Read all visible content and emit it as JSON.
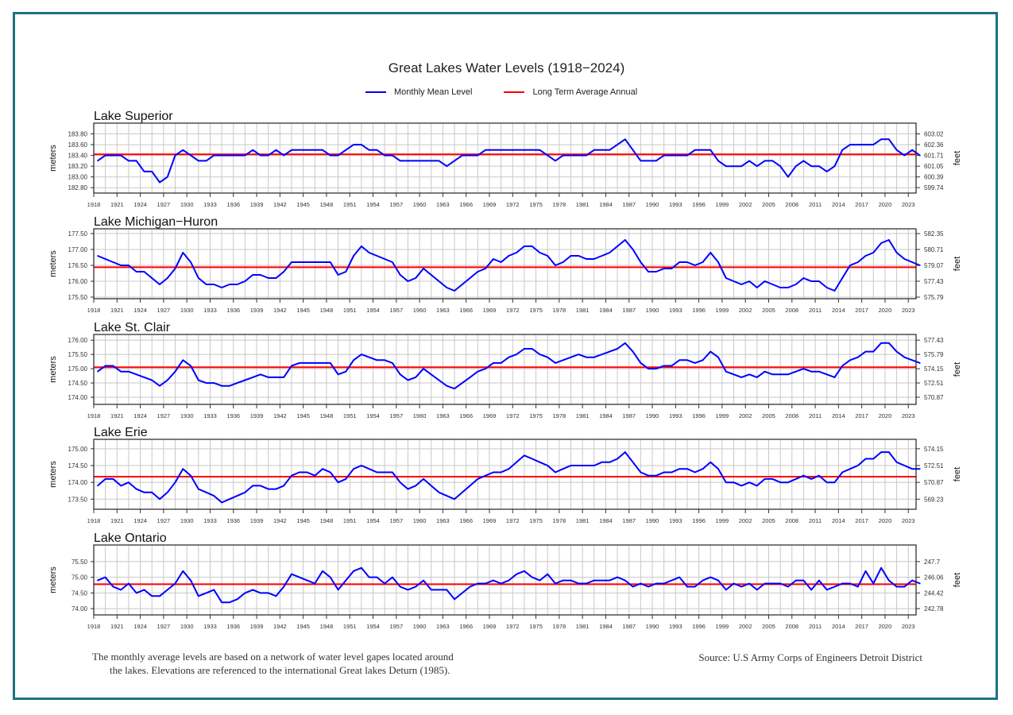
{
  "title": "Great Lakes Water Levels (1918−2024)",
  "legend": [
    {
      "label": "Monthly Mean Level",
      "color": "#0000ff"
    },
    {
      "label": "Long Term Average Annual",
      "color": "#ff0000"
    }
  ],
  "footnote": {
    "line1": "The monthly average levels are based on a network of water level gapes located around",
    "line2": "the lakes. Elevations are referenced to the international Great lakes Deturn (1985)."
  },
  "source": "Source: U.S Army Corps of Engineers Detroit District",
  "chart_data": [
    {
      "type": "line",
      "title": "Lake Superior",
      "ylabel": "meters",
      "y2label": "feet",
      "x_start": 1918,
      "x_end": 2024,
      "x_ticks": [
        "1918",
        "1921",
        "1924",
        "1927",
        "1930",
        "1933",
        "1936",
        "1939",
        "1942",
        "1945",
        "1948",
        "1951",
        "1954",
        "1957",
        "1960",
        "1963",
        "1966",
        "1969",
        "1972",
        "1975",
        "1978",
        "1981",
        "1984",
        "1987",
        "1990",
        "1993",
        "1996",
        "1999",
        "2002",
        "2005",
        "2008",
        "2011",
        "2014",
        "2017",
        "2020",
        "2023"
      ],
      "ylim": [
        182.7,
        184.0
      ],
      "y_ticks": [
        183.8,
        183.6,
        183.4,
        183.2,
        183.0,
        182.8
      ],
      "y_tick_labels": [
        "183.80",
        "183.60",
        "183.40",
        "183.20",
        "183.00",
        "182.80"
      ],
      "y2_tick_labels": [
        "603.02",
        "602.36",
        "601.71",
        "601.05",
        "600.39",
        "599.74"
      ],
      "long_term_average": 183.42,
      "grid": true,
      "series": [
        {
          "values": [
            183.3,
            183.4,
            183.4,
            183.4,
            183.3,
            183.3,
            183.1,
            183.1,
            182.9,
            183.0,
            183.4,
            183.5,
            183.4,
            183.3,
            183.3,
            183.4,
            183.4,
            183.4,
            183.4,
            183.4,
            183.5,
            183.4,
            183.4,
            183.5,
            183.4,
            183.5,
            183.5,
            183.5,
            183.5,
            183.5,
            183.4,
            183.4,
            183.5,
            183.6,
            183.6,
            183.5,
            183.5,
            183.4,
            183.4,
            183.3,
            183.3,
            183.3,
            183.3,
            183.3,
            183.3,
            183.2,
            183.3,
            183.4,
            183.4,
            183.4,
            183.5,
            183.5,
            183.5,
            183.5,
            183.5,
            183.5,
            183.5,
            183.5,
            183.4,
            183.3,
            183.4,
            183.4,
            183.4,
            183.4,
            183.5,
            183.5,
            183.5,
            183.6,
            183.7,
            183.5,
            183.3,
            183.3,
            183.3,
            183.4,
            183.4,
            183.4,
            183.4,
            183.5,
            183.5,
            183.5,
            183.3,
            183.2,
            183.2,
            183.2,
            183.3,
            183.2,
            183.3,
            183.3,
            183.2,
            183.0,
            183.2,
            183.3,
            183.2,
            183.2,
            183.1,
            183.2,
            183.5,
            183.6,
            183.6,
            183.6,
            183.6,
            183.7,
            183.7,
            183.5,
            183.4,
            183.5,
            183.4
          ]
        }
      ]
    },
    {
      "type": "line",
      "title": "Lake Michigan−Huron",
      "ylabel": "meters",
      "y2label": "feet",
      "x_start": 1918,
      "x_end": 2024,
      "x_ticks": [
        "1918",
        "1921",
        "1924",
        "1927",
        "1930",
        "1933",
        "1936",
        "1939",
        "1942",
        "1945",
        "1948",
        "1951",
        "1954",
        "1957",
        "1960",
        "1963",
        "1966",
        "1969",
        "1972",
        "1975",
        "1978",
        "1981",
        "1984",
        "1987",
        "1990",
        "1993",
        "1996",
        "1999",
        "2002",
        "2005",
        "2008",
        "2011",
        "2014",
        "2017",
        "2020",
        "2023"
      ],
      "ylim": [
        175.45,
        177.65
      ],
      "y_ticks": [
        177.5,
        177.0,
        176.5,
        176.0,
        175.5
      ],
      "y_tick_labels": [
        "177.50",
        "177.00",
        "176.50",
        "176.00",
        "175.50"
      ],
      "y2_tick_labels": [
        "582.35",
        "580.71",
        "579.07",
        "577.43",
        "575.79"
      ],
      "long_term_average": 176.44,
      "grid": true,
      "series": [
        {
          "values": [
            176.8,
            176.7,
            176.6,
            176.5,
            176.5,
            176.3,
            176.3,
            176.1,
            175.9,
            176.1,
            176.4,
            176.9,
            176.6,
            176.1,
            175.9,
            175.9,
            175.8,
            175.9,
            175.9,
            176.0,
            176.2,
            176.2,
            176.1,
            176.1,
            176.3,
            176.6,
            176.6,
            176.6,
            176.6,
            176.6,
            176.6,
            176.2,
            176.3,
            176.8,
            177.1,
            176.9,
            176.8,
            176.7,
            176.6,
            176.2,
            176.0,
            176.1,
            176.4,
            176.2,
            176.0,
            175.8,
            175.7,
            175.9,
            176.1,
            176.3,
            176.4,
            176.7,
            176.6,
            176.8,
            176.9,
            177.1,
            177.1,
            176.9,
            176.8,
            176.5,
            176.6,
            176.8,
            176.8,
            176.7,
            176.7,
            176.8,
            176.9,
            177.1,
            177.3,
            177.0,
            176.6,
            176.3,
            176.3,
            176.4,
            176.4,
            176.6,
            176.6,
            176.5,
            176.6,
            176.9,
            176.6,
            176.1,
            176.0,
            175.9,
            176.0,
            175.8,
            176.0,
            175.9,
            175.8,
            175.8,
            175.9,
            176.1,
            176.0,
            176.0,
            175.8,
            175.7,
            176.1,
            176.5,
            176.6,
            176.8,
            176.9,
            177.2,
            177.3,
            176.9,
            176.7,
            176.6,
            176.5
          ]
        }
      ]
    },
    {
      "type": "line",
      "title": "Lake St. Clair",
      "ylabel": "meters",
      "y2label": "feet",
      "x_start": 1918,
      "x_end": 2024,
      "x_ticks": [
        "1918",
        "1921",
        "1924",
        "1927",
        "1930",
        "1933",
        "1936",
        "1939",
        "1942",
        "1945",
        "1948",
        "1951",
        "1954",
        "1957",
        "1960",
        "1963",
        "1966",
        "1969",
        "1972",
        "1975",
        "1978",
        "1981",
        "1984",
        "1987",
        "1990",
        "1993",
        "1996",
        "1999",
        "2002",
        "2005",
        "2008",
        "2011",
        "2014",
        "2017",
        "2020",
        "2023"
      ],
      "ylim": [
        173.75,
        176.2
      ],
      "y_ticks": [
        176.0,
        175.5,
        175.0,
        174.5,
        174.0
      ],
      "y_tick_labels": [
        "176.00",
        "175.50",
        "175.00",
        "174.50",
        "174.00"
      ],
      "y2_tick_labels": [
        "577.43",
        "575.79",
        "574.15",
        "572.51",
        "570.87"
      ],
      "long_term_average": 175.05,
      "grid": true,
      "series": [
        {
          "values": [
            174.9,
            175.1,
            175.1,
            174.9,
            174.9,
            174.8,
            174.7,
            174.6,
            174.4,
            174.6,
            174.9,
            175.3,
            175.1,
            174.6,
            174.5,
            174.5,
            174.4,
            174.4,
            174.5,
            174.6,
            174.7,
            174.8,
            174.7,
            174.7,
            174.7,
            175.1,
            175.2,
            175.2,
            175.2,
            175.2,
            175.2,
            174.8,
            174.9,
            175.3,
            175.5,
            175.4,
            175.3,
            175.3,
            175.2,
            174.8,
            174.6,
            174.7,
            175.0,
            174.8,
            174.6,
            174.4,
            174.3,
            174.5,
            174.7,
            174.9,
            175.0,
            175.2,
            175.2,
            175.4,
            175.5,
            175.7,
            175.7,
            175.5,
            175.4,
            175.2,
            175.3,
            175.4,
            175.5,
            175.4,
            175.4,
            175.5,
            175.6,
            175.7,
            175.9,
            175.6,
            175.2,
            175.0,
            175.0,
            175.1,
            175.1,
            175.3,
            175.3,
            175.2,
            175.3,
            175.6,
            175.4,
            174.9,
            174.8,
            174.7,
            174.8,
            174.7,
            174.9,
            174.8,
            174.8,
            174.8,
            174.9,
            175.0,
            174.9,
            174.9,
            174.8,
            174.7,
            175.1,
            175.3,
            175.4,
            175.6,
            175.6,
            175.9,
            175.9,
            175.6,
            175.4,
            175.3,
            175.2
          ]
        }
      ]
    },
    {
      "type": "line",
      "title": "Lake Erie",
      "ylabel": "meters",
      "y2label": "feet",
      "x_start": 1918,
      "x_end": 2024,
      "x_ticks": [
        "1918",
        "1921",
        "1924",
        "1927",
        "1930",
        "1933",
        "1936",
        "1939",
        "1942",
        "1945",
        "1948",
        "1951",
        "1954",
        "1957",
        "1960",
        "1963",
        "1966",
        "1969",
        "1972",
        "1975",
        "1978",
        "1981",
        "1984",
        "1987",
        "1990",
        "1993",
        "1996",
        "1999",
        "2002",
        "2005",
        "2008",
        "2011",
        "2014",
        "2017",
        "2020",
        "2023"
      ],
      "ylim": [
        173.2,
        175.28
      ],
      "y_ticks": [
        175.0,
        174.5,
        174.0,
        173.5
      ],
      "y_tick_labels": [
        "175.00",
        "174.50",
        "174.00",
        "173.50"
      ],
      "y2_tick_labels": [
        "574.15",
        "572.51",
        "570.87",
        "569.23"
      ],
      "long_term_average": 174.17,
      "grid": true,
      "series": [
        {
          "values": [
            173.9,
            174.1,
            174.1,
            173.9,
            174.0,
            173.8,
            173.7,
            173.7,
            173.5,
            173.7,
            174.0,
            174.4,
            174.2,
            173.8,
            173.7,
            173.6,
            173.4,
            173.5,
            173.6,
            173.7,
            173.9,
            173.9,
            173.8,
            173.8,
            173.9,
            174.2,
            174.3,
            174.3,
            174.2,
            174.4,
            174.3,
            174.0,
            174.1,
            174.4,
            174.5,
            174.4,
            174.3,
            174.3,
            174.3,
            174.0,
            173.8,
            173.9,
            174.1,
            173.9,
            173.7,
            173.6,
            173.5,
            173.7,
            173.9,
            174.1,
            174.2,
            174.3,
            174.3,
            174.4,
            174.6,
            174.8,
            174.7,
            174.6,
            174.5,
            174.3,
            174.4,
            174.5,
            174.5,
            174.5,
            174.5,
            174.6,
            174.6,
            174.7,
            174.9,
            174.6,
            174.3,
            174.2,
            174.2,
            174.3,
            174.3,
            174.4,
            174.4,
            174.3,
            174.4,
            174.6,
            174.4,
            174.0,
            174.0,
            173.9,
            174.0,
            173.9,
            174.1,
            174.1,
            174.0,
            174.0,
            174.1,
            174.2,
            174.1,
            174.2,
            174.0,
            174.0,
            174.3,
            174.4,
            174.5,
            174.7,
            174.7,
            174.9,
            174.9,
            174.6,
            174.5,
            174.4,
            174.4
          ]
        }
      ]
    },
    {
      "type": "line",
      "title": "Lake Ontario",
      "ylabel": "meters",
      "y2label": "feet",
      "x_start": 1918,
      "x_end": 2024,
      "x_ticks": [
        "1918",
        "1921",
        "1924",
        "1927",
        "1930",
        "1933",
        "1936",
        "1939",
        "1942",
        "1945",
        "1948",
        "1951",
        "1954",
        "1957",
        "1960",
        "1963",
        "1966",
        "1969",
        "1972",
        "1975",
        "1978",
        "1981",
        "1984",
        "1987",
        "1990",
        "1993",
        "1996",
        "1999",
        "2002",
        "2005",
        "2008",
        "2011",
        "2014",
        "2017",
        "2020",
        "2023"
      ],
      "ylim": [
        73.8,
        76.03
      ],
      "y_ticks": [
        75.5,
        75.0,
        74.5,
        74.0
      ],
      "y_tick_labels": [
        "75.50",
        "75.00",
        "74.50",
        "74.00"
      ],
      "y2_tick_labels": [
        "247.7",
        "246.06",
        "244.42",
        "242.78"
      ],
      "long_term_average": 74.78,
      "grid": true,
      "series": [
        {
          "values": [
            74.9,
            75.0,
            74.7,
            74.6,
            74.8,
            74.5,
            74.6,
            74.4,
            74.4,
            74.6,
            74.8,
            75.2,
            74.9,
            74.4,
            74.5,
            74.6,
            74.2,
            74.2,
            74.3,
            74.5,
            74.6,
            74.5,
            74.5,
            74.4,
            74.7,
            75.1,
            75.0,
            74.9,
            74.8,
            75.2,
            75.0,
            74.6,
            74.9,
            75.2,
            75.3,
            75.0,
            75.0,
            74.8,
            75.0,
            74.7,
            74.6,
            74.7,
            74.9,
            74.6,
            74.6,
            74.6,
            74.3,
            74.5,
            74.7,
            74.8,
            74.8,
            74.9,
            74.8,
            74.9,
            75.1,
            75.2,
            75.0,
            74.9,
            75.1,
            74.8,
            74.9,
            74.9,
            74.8,
            74.8,
            74.9,
            74.9,
            74.9,
            75.0,
            74.9,
            74.7,
            74.8,
            74.7,
            74.8,
            74.8,
            74.9,
            75.0,
            74.7,
            74.7,
            74.9,
            75.0,
            74.9,
            74.6,
            74.8,
            74.7,
            74.8,
            74.6,
            74.8,
            74.8,
            74.8,
            74.7,
            74.9,
            74.9,
            74.6,
            74.9,
            74.6,
            74.7,
            74.8,
            74.8,
            74.7,
            75.2,
            74.8,
            75.3,
            74.9,
            74.7,
            74.7,
            74.9,
            74.8
          ]
        }
      ]
    }
  ]
}
